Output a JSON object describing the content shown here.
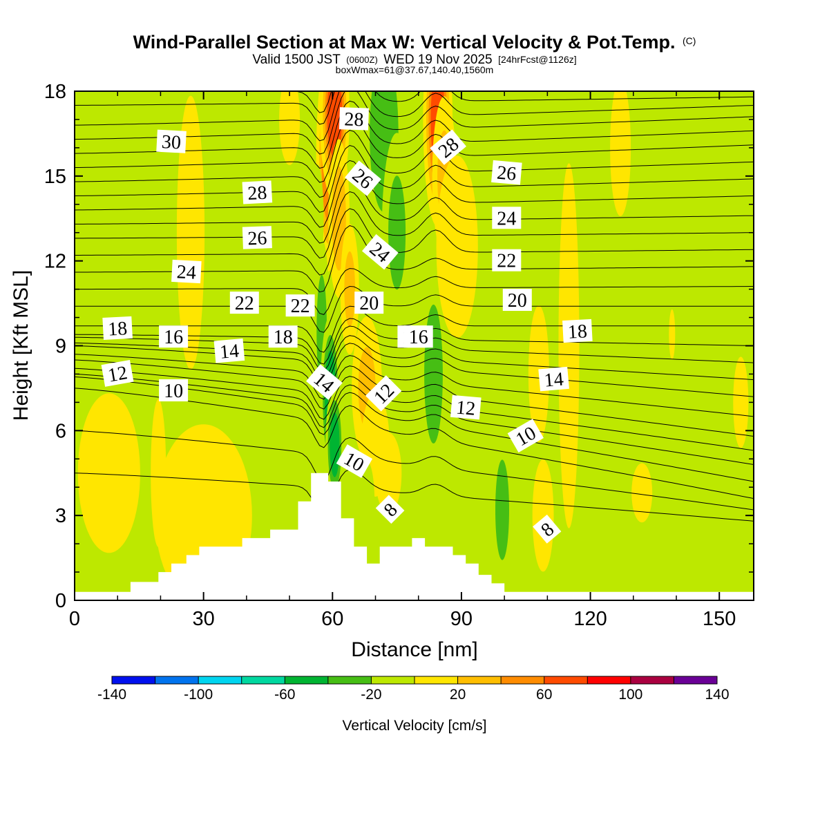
{
  "chart_data": {
    "type": "heatmap",
    "title": "Wind-Parallel Section at Max W: Vertical Velocity & Pot.Temp.",
    "title_mark": "(C)",
    "valid_prefix": "Valid 1500 JST",
    "valid_utc": "(0600Z)",
    "valid_date": "WED 19 Nov 2025",
    "forecast_tag": "[24hrFcst@1126z]",
    "box_info": "boxWmax=61@37.67,140.40,1560m",
    "xlabel": "Distance [nm]",
    "ylabel": "Height [Kft MSL]",
    "xlim": [
      0,
      158
    ],
    "ylim": [
      0,
      18
    ],
    "x_ticks": [
      "0",
      "30",
      "60",
      "90",
      "120",
      "150"
    ],
    "y_ticks": [
      "0",
      "3",
      "6",
      "9",
      "12",
      "15",
      "18"
    ],
    "colorbar": {
      "label": "Vertical Velocity [cm/s]",
      "tick_labels": [
        "-140",
        "-100",
        "-60",
        "-20",
        "20",
        "60",
        "100",
        "140"
      ],
      "bounds": [
        -140,
        -120,
        -100,
        -80,
        -60,
        -40,
        -20,
        0,
        20,
        40,
        60,
        80,
        100,
        120,
        140
      ],
      "colors": [
        "#0010ee",
        "#0073ee",
        "#00d5f0",
        "#00d8a0",
        "#00b432",
        "#46be14",
        "#bde800",
        "#ffe600",
        "#ffbe00",
        "#ff8c00",
        "#ff4b00",
        "#ff0000",
        "#aa0040",
        "#6a0096"
      ]
    },
    "background_value_range": [
      -20,
      0
    ],
    "w_features": [
      {
        "x": 59,
        "z": 15.5,
        "sx": 1.6,
        "sz": 2.2,
        "value": 70
      },
      {
        "x": 60.5,
        "z": 17.2,
        "sx": 1.8,
        "sz": 1.6,
        "value": 95
      },
      {
        "x": 61.5,
        "z": 13.5,
        "sx": 1.6,
        "sz": 1.8,
        "value": 50
      },
      {
        "x": 64,
        "z": 11,
        "sx": 1.5,
        "sz": 1.6,
        "value": 42
      },
      {
        "x": 68,
        "z": 7.5,
        "sx": 2.5,
        "sz": 1.8,
        "value": 40
      },
      {
        "x": 70,
        "z": 5.5,
        "sx": 2.5,
        "sz": 1.4,
        "value": 35
      },
      {
        "x": 73,
        "z": 4.5,
        "sx": 3,
        "sz": 1.4,
        "value": 25
      },
      {
        "x": 84.5,
        "z": 17,
        "sx": 1.8,
        "sz": 2,
        "value": 90
      },
      {
        "x": 86,
        "z": 15,
        "sx": 2,
        "sz": 2,
        "value": 40
      },
      {
        "x": 72,
        "z": 16.5,
        "sx": 3,
        "sz": 2.5,
        "value": -55
      },
      {
        "x": 75,
        "z": 13,
        "sx": 2.5,
        "sz": 2.5,
        "value": -40
      },
      {
        "x": 57.5,
        "z": 9.5,
        "sx": 1.3,
        "sz": 2.2,
        "value": -45
      },
      {
        "x": 59.5,
        "z": 7.2,
        "sx": 1.3,
        "sz": 1.6,
        "value": -75
      },
      {
        "x": 60.5,
        "z": 5.5,
        "sx": 1.2,
        "sz": 1.2,
        "value": -70
      },
      {
        "x": 56.5,
        "z": 13.5,
        "sx": 1.2,
        "sz": 1.6,
        "value": -30
      },
      {
        "x": 83.5,
        "z": 8,
        "sx": 2.2,
        "sz": 2.5,
        "value": -48
      },
      {
        "x": 99.5,
        "z": 3.2,
        "sx": 2,
        "sz": 2.2,
        "value": -40
      },
      {
        "x": 108,
        "z": 15.5,
        "sx": 3.5,
        "sz": 3,
        "value": -35
      },
      {
        "x": 106,
        "z": 12,
        "sx": 3,
        "sz": 2,
        "value": -28
      },
      {
        "x": 68,
        "z": 3.5,
        "sx": 1.5,
        "sz": 1.2,
        "value": -30
      },
      {
        "x": 19.5,
        "z": 4.5,
        "sx": 1.5,
        "sz": 2.2,
        "value": 30
      },
      {
        "x": 109,
        "z": 3,
        "sx": 2,
        "sz": 1.6,
        "value": 32
      },
      {
        "x": 27,
        "z": 13,
        "sx": 4,
        "sz": 6,
        "value": 10
      },
      {
        "x": 8,
        "z": 4.5,
        "sx": 9,
        "sz": 3.5,
        "value": 10
      },
      {
        "x": 30,
        "z": 3,
        "sx": 14,
        "sz": 4,
        "value": 10
      },
      {
        "x": 50,
        "z": 17,
        "sx": 3,
        "sz": 2,
        "value": 12
      },
      {
        "x": 115,
        "z": 9,
        "sx": 3,
        "sz": 8,
        "value": 14
      },
      {
        "x": 127,
        "z": 16,
        "sx": 3,
        "sz": 3,
        "value": 10
      },
      {
        "x": 132,
        "z": 3.8,
        "sx": 3,
        "sz": 1.3,
        "value": 12
      },
      {
        "x": 155,
        "z": 7,
        "sx": 2.2,
        "sz": 2,
        "value": 12
      },
      {
        "x": 139,
        "z": 9.4,
        "sx": 0.9,
        "sz": 1.1,
        "value": 12
      },
      {
        "x": 108,
        "z": 8,
        "sx": 3,
        "sz": 3,
        "value": 8
      },
      {
        "x": 89,
        "z": 12.5,
        "sx": 6,
        "sz": 4,
        "value": 6
      }
    ],
    "terrain_profile": {
      "x": [
        0,
        13,
        13,
        19.5,
        19.5,
        22.5,
        22.5,
        26,
        26,
        29,
        29,
        39,
        39,
        45.5,
        45.5,
        52,
        52,
        55,
        55,
        59,
        59,
        62,
        62,
        65,
        65,
        68,
        68,
        71,
        71,
        78.5,
        78.5,
        81.5,
        81.5,
        88,
        88,
        91,
        91,
        94,
        94,
        97,
        97,
        100,
        100,
        103.5,
        103.5,
        158
      ],
      "z": [
        0.3,
        0.3,
        0.65,
        0.65,
        1.0,
        1.0,
        1.3,
        1.3,
        1.6,
        1.6,
        1.9,
        1.9,
        2.2,
        2.2,
        2.5,
        2.5,
        3.5,
        3.5,
        4.5,
        4.5,
        4.2,
        4.2,
        2.9,
        2.9,
        1.9,
        1.9,
        1.3,
        1.3,
        1.9,
        1.9,
        2.2,
        2.2,
        1.9,
        1.9,
        1.6,
        1.6,
        1.3,
        1.3,
        0.9,
        0.9,
        0.6,
        0.6,
        0.3,
        0.3,
        0.3,
        0.3
      ]
    },
    "theta_contours": {
      "unit": "degC",
      "values": [
        6,
        7,
        8,
        9,
        10,
        11,
        12,
        13,
        14,
        15,
        16,
        17,
        18,
        19,
        20,
        21,
        22,
        23,
        24,
        25,
        26,
        27,
        28,
        29,
        30,
        31,
        32,
        33
      ],
      "left_heights_kft": [
        4.5,
        6.0,
        7.5,
        7.9,
        8.0,
        8.2,
        8.5,
        8.7,
        9.0,
        9.1,
        9.3,
        9.4,
        9.7,
        10.4,
        11.0,
        11.6,
        12.2,
        12.8,
        13.3,
        13.8,
        14.3,
        14.8,
        15.3,
        15.8,
        16.3,
        16.8,
        17.5,
        18.0
      ],
      "right_heights_kft": [
        2.8,
        3.2,
        3.6,
        4.2,
        4.8,
        5.3,
        5.8,
        6.5,
        7.2,
        7.8,
        8.4,
        9.0,
        9.7,
        10.4,
        11.1,
        11.8,
        12.4,
        13.0,
        13.6,
        14.3,
        14.9,
        15.5,
        16.1,
        16.6,
        17.1,
        17.5,
        17.8,
        18.0
      ]
    },
    "contour_labels": [
      {
        "text": "30",
        "x": 22.5,
        "z": 16.2,
        "angle": 3
      },
      {
        "text": "28",
        "x": 42.5,
        "z": 14.4,
        "angle": -3
      },
      {
        "text": "26",
        "x": 42.5,
        "z": 12.8,
        "angle": -2
      },
      {
        "text": "24",
        "x": 26,
        "z": 11.6,
        "angle": 3
      },
      {
        "text": "22",
        "x": 39.5,
        "z": 10.5,
        "angle": 0
      },
      {
        "text": "22",
        "x": 52.5,
        "z": 10.4,
        "angle": 0
      },
      {
        "text": "18",
        "x": 10,
        "z": 9.6,
        "angle": -3
      },
      {
        "text": "16",
        "x": 23,
        "z": 9.3,
        "angle": 0
      },
      {
        "text": "14",
        "x": 36,
        "z": 8.8,
        "angle": -5
      },
      {
        "text": "18",
        "x": 48.5,
        "z": 9.3,
        "angle": 0
      },
      {
        "text": "12",
        "x": 10,
        "z": 8.0,
        "angle": -10
      },
      {
        "text": "10",
        "x": 23,
        "z": 7.4,
        "angle": 0
      },
      {
        "text": "28",
        "x": 65,
        "z": 17.0,
        "angle": 2
      },
      {
        "text": "26",
        "x": 67,
        "z": 14.9,
        "angle": 40
      },
      {
        "text": "24",
        "x": 71,
        "z": 12.3,
        "angle": 40
      },
      {
        "text": "20",
        "x": 68.5,
        "z": 10.5,
        "angle": 0
      },
      {
        "text": "16",
        "x": 78.5,
        "z": 9.3,
        "angle": 0
      },
      {
        "text": "14",
        "x": 58,
        "z": 7.7,
        "angle": 40
      },
      {
        "text": "12",
        "x": 72,
        "z": 7.3,
        "angle": -45
      },
      {
        "text": "10",
        "x": 65,
        "z": 4.9,
        "angle": 30
      },
      {
        "text": "8",
        "x": 73.5,
        "z": 3.2,
        "angle": -45
      },
      {
        "text": "28",
        "x": 87,
        "z": 16.0,
        "angle": -40
      },
      {
        "text": "26",
        "x": 100.5,
        "z": 15.1,
        "angle": 5
      },
      {
        "text": "24",
        "x": 100.5,
        "z": 13.5,
        "angle": 0
      },
      {
        "text": "22",
        "x": 100.5,
        "z": 12.0,
        "angle": 0
      },
      {
        "text": "20",
        "x": 103,
        "z": 10.6,
        "angle": 0
      },
      {
        "text": "18",
        "x": 117,
        "z": 9.5,
        "angle": -3
      },
      {
        "text": "16",
        "x": 80,
        "z": 9.3,
        "angle": 0
      },
      {
        "text": "14",
        "x": 111.5,
        "z": 7.8,
        "angle": -5
      },
      {
        "text": "12",
        "x": 91,
        "z": 6.8,
        "angle": 5
      },
      {
        "text": "10",
        "x": 105,
        "z": 5.8,
        "angle": -30
      },
      {
        "text": "8",
        "x": 110,
        "z": 2.5,
        "angle": -40
      }
    ]
  }
}
